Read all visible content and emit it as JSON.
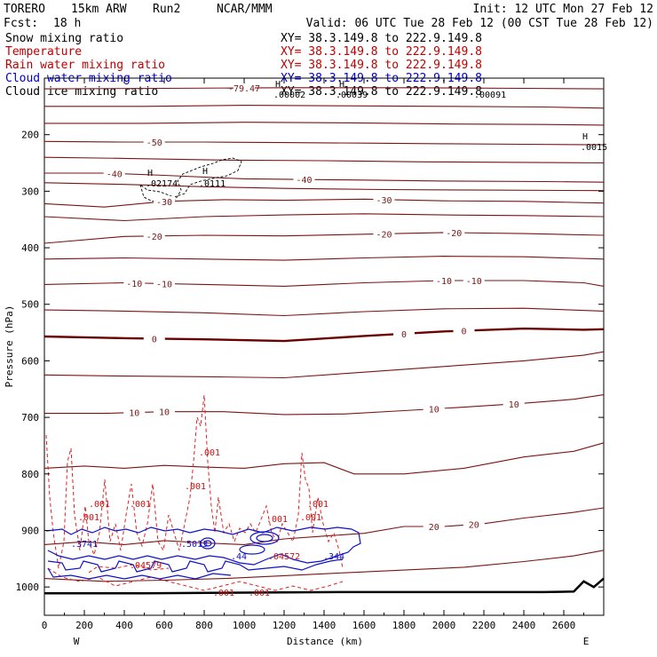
{
  "chart_data": {
    "type": "cross-section",
    "header": {
      "model": "TORERO",
      "config": "15km ARW",
      "run": "Run2",
      "org": "NCAR/MMM",
      "init": "Init: 12 UTC Mon 27 Feb 12",
      "fcst_label": "Fcst:",
      "fcst_value": "18 h",
      "valid": "Valid: 06 UTC Tue 28 Feb 12 (00 CST Tue 28 Feb 12)"
    },
    "fields": [
      {
        "name": "Snow mixing ratio",
        "color": "#000000",
        "xy": "XY=  38.3.149.8 to 222.9.149.8"
      },
      {
        "name": "Temperature",
        "color": "#c00000",
        "xy": "XY=  38.3.149.8 to 222.9.149.8"
      },
      {
        "name": "Rain water mixing ratio",
        "color": "#c00000",
        "xy": "XY=  38.3.149.8 to 222.9.149.8"
      },
      {
        "name": "Cloud water mixing ratio",
        "color": "#0000c8",
        "xy": "XY=  38.3.149.8 to 222.9.149.8"
      },
      {
        "name": "Cloud ice mixing ratio",
        "color": "#000000",
        "xy": "XY=  38.3.149.8 to 222.9.149.8"
      }
    ],
    "xlabel": "Distance (km)",
    "ylabel": "Pressure (hPa)",
    "xlim": [
      0,
      2800
    ],
    "ylim": [
      100,
      1050
    ],
    "x_ticks": [
      0,
      200,
      400,
      600,
      800,
      1000,
      1200,
      1400,
      1600,
      1800,
      2000,
      2200,
      2400,
      2600
    ],
    "y_ticks": [
      200,
      300,
      400,
      500,
      600,
      700,
      800,
      900,
      1000
    ],
    "x_tick_labels": [
      "0",
      "200",
      "400",
      "600",
      "800",
      "1000",
      "1200",
      "1400",
      "1600",
      "1800",
      "2000",
      "2200",
      "2400",
      "2600"
    ],
    "y_tick_labels": [
      "200",
      "300",
      "400",
      "500",
      "600",
      "700",
      "800",
      "900",
      "1000"
    ],
    "left_end": "W",
    "right_end": "E",
    "temperature_contours": [
      {
        "value": -70,
        "label": "-79.47",
        "points": [
          [
            0,
            119
          ],
          [
            600,
            118
          ],
          [
            1200,
            117
          ],
          [
            1800,
            117
          ],
          [
            2400,
            118
          ],
          [
            2800,
            119
          ]
        ]
      },
      {
        "value": -60,
        "label": "",
        "points": [
          [
            0,
            150
          ],
          [
            500,
            150
          ],
          [
            1000,
            148
          ],
          [
            1500,
            149
          ],
          [
            2000,
            150
          ],
          [
            2500,
            151
          ],
          [
            2800,
            153
          ]
        ]
      },
      {
        "value": -55,
        "label": "",
        "points": [
          [
            0,
            180
          ],
          [
            500,
            180
          ],
          [
            1000,
            178
          ],
          [
            1500,
            179
          ],
          [
            2000,
            181
          ],
          [
            2500,
            182
          ],
          [
            2800,
            183
          ]
        ]
      },
      {
        "value": -50,
        "label": "-50",
        "points": [
          [
            0,
            212
          ],
          [
            400,
            213
          ],
          [
            800,
            213
          ],
          [
            1200,
            214
          ],
          [
            1600,
            215
          ],
          [
            2000,
            216
          ],
          [
            2400,
            217
          ],
          [
            2800,
            218
          ]
        ]
      },
      {
        "value": -45,
        "label": "",
        "points": [
          [
            0,
            240
          ],
          [
            400,
            242
          ],
          [
            900,
            245
          ],
          [
            1400,
            246
          ],
          [
            1900,
            248
          ],
          [
            2400,
            249
          ],
          [
            2800,
            250
          ]
        ]
      },
      {
        "value": -40,
        "label": "-40",
        "points": [
          [
            0,
            268
          ],
          [
            300,
            268
          ],
          [
            600,
            272
          ],
          [
            1000,
            278
          ],
          [
            1500,
            280
          ],
          [
            2000,
            282
          ],
          [
            2500,
            283
          ],
          [
            2800,
            284
          ]
        ]
      },
      {
        "value": -35,
        "label": "",
        "points": [
          [
            0,
            285
          ],
          [
            400,
            288
          ],
          [
            800,
            292
          ],
          [
            1200,
            295
          ],
          [
            1700,
            297
          ],
          [
            2200,
            298
          ],
          [
            2800,
            299
          ]
        ]
      },
      {
        "value": -30,
        "label": "-30",
        "points": [
          [
            0,
            322
          ],
          [
            300,
            328
          ],
          [
            600,
            318
          ],
          [
            900,
            315
          ],
          [
            1200,
            316
          ],
          [
            1600,
            314
          ],
          [
            2000,
            317
          ],
          [
            2400,
            318
          ],
          [
            2800,
            321
          ]
        ]
      },
      {
        "value": -25,
        "label": "",
        "points": [
          [
            0,
            345
          ],
          [
            400,
            352
          ],
          [
            800,
            345
          ],
          [
            1200,
            342
          ],
          [
            1600,
            340
          ],
          [
            2000,
            342
          ],
          [
            2400,
            343
          ],
          [
            2800,
            345
          ]
        ]
      },
      {
        "value": -20,
        "label": "-20",
        "points": [
          [
            0,
            392
          ],
          [
            400,
            380
          ],
          [
            800,
            378
          ],
          [
            1200,
            379
          ],
          [
            1600,
            376
          ],
          [
            2000,
            373
          ],
          [
            2400,
            375
          ],
          [
            2800,
            378
          ]
        ]
      },
      {
        "value": -15,
        "label": "",
        "points": [
          [
            0,
            420
          ],
          [
            400,
            418
          ],
          [
            800,
            420
          ],
          [
            1200,
            422
          ],
          [
            1600,
            418
          ],
          [
            2000,
            415
          ],
          [
            2400,
            416
          ],
          [
            2800,
            420
          ]
        ]
      },
      {
        "value": -10,
        "label": "-10",
        "points": [
          [
            0,
            465
          ],
          [
            400,
            462
          ],
          [
            800,
            465
          ],
          [
            1200,
            468
          ],
          [
            1600,
            462
          ],
          [
            2000,
            458
          ],
          [
            2400,
            458
          ],
          [
            2700,
            462
          ],
          [
            2800,
            468
          ]
        ]
      },
      {
        "value": -5,
        "label": "",
        "points": [
          [
            0,
            510
          ],
          [
            400,
            512
          ],
          [
            800,
            515
          ],
          [
            1200,
            520
          ],
          [
            1600,
            513
          ],
          [
            2000,
            508
          ],
          [
            2400,
            507
          ],
          [
            2800,
            512
          ]
        ]
      },
      {
        "value": 0,
        "label": "0",
        "points": [
          [
            0,
            557
          ],
          [
            400,
            560
          ],
          [
            800,
            562
          ],
          [
            1200,
            565
          ],
          [
            1600,
            556
          ],
          [
            2000,
            548
          ],
          [
            2400,
            543
          ],
          [
            2700,
            545
          ],
          [
            2800,
            544
          ]
        ]
      },
      {
        "value": 5,
        "label": "",
        "points": [
          [
            0,
            625
          ],
          [
            400,
            627
          ],
          [
            800,
            628
          ],
          [
            1200,
            630
          ],
          [
            1600,
            620
          ],
          [
            2000,
            610
          ],
          [
            2400,
            600
          ],
          [
            2700,
            590
          ],
          [
            2800,
            584
          ]
        ]
      },
      {
        "value": 10,
        "label": "10",
        "points": [
          [
            0,
            693
          ],
          [
            300,
            693
          ],
          [
            600,
            690
          ],
          [
            900,
            690
          ],
          [
            1200,
            695
          ],
          [
            1500,
            694
          ],
          [
            1800,
            688
          ],
          [
            2100,
            682
          ],
          [
            2400,
            675
          ],
          [
            2650,
            668
          ],
          [
            2800,
            660
          ]
        ]
      },
      {
        "value": 15,
        "label": "",
        "points": [
          [
            0,
            790
          ],
          [
            200,
            786
          ],
          [
            400,
            790
          ],
          [
            600,
            785
          ],
          [
            800,
            788
          ],
          [
            1000,
            790
          ],
          [
            1200,
            782
          ],
          [
            1400,
            780
          ],
          [
            1550,
            800
          ],
          [
            1800,
            800
          ],
          [
            2100,
            790
          ],
          [
            2400,
            770
          ],
          [
            2650,
            760
          ],
          [
            2800,
            745
          ]
        ]
      },
      {
        "value": 20,
        "label": "20",
        "points": [
          [
            0,
            925
          ],
          [
            200,
            920
          ],
          [
            400,
            925
          ],
          [
            600,
            918
          ],
          [
            800,
            922
          ],
          [
            1000,
            925
          ],
          [
            1200,
            915
          ],
          [
            1400,
            910
          ],
          [
            1600,
            905
          ],
          [
            1800,
            893
          ],
          [
            2000,
            893
          ],
          [
            2200,
            888
          ],
          [
            2400,
            878
          ],
          [
            2650,
            868
          ],
          [
            2800,
            860
          ]
        ]
      },
      {
        "value": 25,
        "label": "",
        "points": [
          [
            0,
            985
          ],
          [
            300,
            990
          ],
          [
            600,
            988
          ],
          [
            900,
            985
          ],
          [
            1200,
            980
          ],
          [
            1500,
            975
          ],
          [
            1800,
            970
          ],
          [
            2100,
            965
          ],
          [
            2400,
            955
          ],
          [
            2650,
            945
          ],
          [
            2800,
            935
          ]
        ]
      }
    ],
    "rain_labels": [
      ".001",
      ".001",
      ".001",
      ".001",
      ".001",
      ".001",
      ".001",
      ".001",
      ".04579",
      ".04572",
      ".001",
      ".001"
    ],
    "cloud_water_labels": [
      ".3741",
      ".5013",
      ".44",
      ".344"
    ],
    "cloud_ice_labels": [
      "H",
      ".02174",
      "H",
      ".0111",
      "H",
      ".0015",
      "H",
      ".00002",
      "H",
      ".00039",
      ".00091"
    ],
    "surface": [
      [
        0,
        1011
      ],
      [
        500,
        1011
      ],
      [
        1000,
        1010
      ],
      [
        1500,
        1009
      ],
      [
        2000,
        1009
      ],
      [
        2500,
        1009
      ],
      [
        2650,
        1008
      ],
      [
        2700,
        990
      ],
      [
        2750,
        1000
      ],
      [
        2800,
        985
      ]
    ]
  }
}
